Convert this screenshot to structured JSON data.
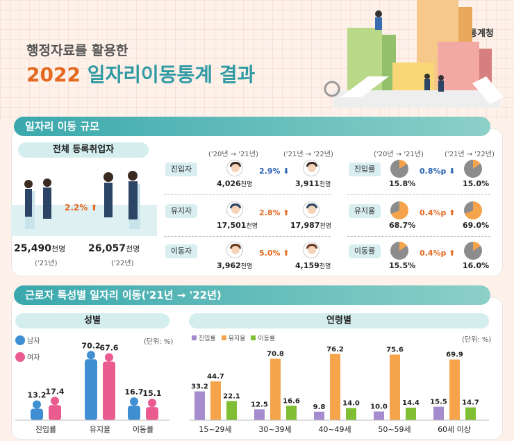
{
  "header": {
    "subtitle": "행정자료를 활용한",
    "title_year": "2022",
    "title_rest": "일자리이동통계 결과",
    "logo_text": "통계청"
  },
  "section1": {
    "heading": "일자리 이동 규모",
    "registered": {
      "label": "전체 등록취업자",
      "change": "2.2%",
      "y2021_value": "25,490",
      "y2022_value": "26,057",
      "unit": "천명",
      "y2021_label": "('21년)",
      "y2022_label": "('22년)"
    },
    "col_headers": {
      "a": "('20년 → '21년)",
      "b": "('21년 → '22년)",
      "c": "('20년 → '21년)",
      "d": "('21년 → '22년)"
    },
    "rows": [
      {
        "label": "진입자",
        "v1": "4,026",
        "v2": "3,911",
        "change": "2.9%",
        "dir": "down",
        "rate_label": "진입률",
        "r1": "15.8%",
        "r2": "15.0%",
        "rchange": "0.8%p",
        "rdir": "down",
        "r1_num": 15.8,
        "r2_num": 15.0
      },
      {
        "label": "유지자",
        "v1": "17,501",
        "v2": "17,987",
        "change": "2.8%",
        "dir": "up",
        "rate_label": "유지율",
        "r1": "68.7%",
        "r2": "69.0%",
        "rchange": "0.4%p",
        "rdir": "up",
        "r1_num": 68.7,
        "r2_num": 69.0
      },
      {
        "label": "이동자",
        "v1": "3,962",
        "v2": "4,159",
        "change": "5.0%",
        "dir": "up",
        "rate_label": "이동률",
        "r1": "15.5%",
        "r2": "16.0%",
        "rchange": "0.4%p",
        "rdir": "up",
        "r1_num": 15.5,
        "r2_num": 16.0
      }
    ],
    "unit": "천명"
  },
  "section2": {
    "heading": "근로자 특성별 일자리 이동('21년 → '22년)"
  },
  "colors": {
    "male": "#3f8fd2",
    "female": "#ea5b8f",
    "entry": "#a58ccf",
    "keep": "#f5a44c",
    "move": "#80be33",
    "orange": "#e3691f",
    "teal": "#3aa8ad"
  },
  "chart_data": [
    {
      "type": "bar",
      "title": "성별",
      "unit_note": "(단위: %)",
      "categories": [
        "진입률",
        "유지율",
        "이동률"
      ],
      "series": [
        {
          "name": "남자",
          "values": [
            13.2,
            70.2,
            16.7
          ]
        },
        {
          "name": "여자",
          "values": [
            17.4,
            67.6,
            15.1
          ]
        }
      ],
      "ylim": [
        0,
        80
      ]
    },
    {
      "type": "bar",
      "title": "연령별",
      "unit_note": "(단위: %)",
      "categories": [
        "15~29세",
        "30~39세",
        "40~49세",
        "50~59세",
        "60세 이상"
      ],
      "series": [
        {
          "name": "진입률",
          "values": [
            33.2,
            12.5,
            9.8,
            10.0,
            15.5
          ]
        },
        {
          "name": "유지율",
          "values": [
            44.7,
            70.8,
            76.2,
            75.6,
            69.9
          ]
        },
        {
          "name": "이동률",
          "values": [
            22.1,
            16.6,
            14.0,
            14.4,
            14.7
          ]
        }
      ],
      "ylim": [
        0,
        80
      ]
    }
  ]
}
